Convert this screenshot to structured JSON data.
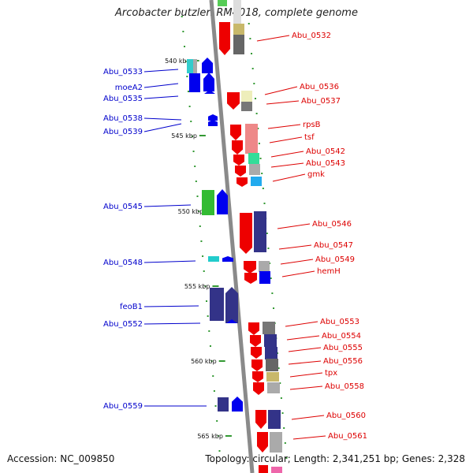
{
  "title": "Arcobacter butzleri RM4018, complete genome",
  "accession": "Accession: NC_009850",
  "footer_info": "Topology: circular; Length: 2,341,251 bp; Genes: 2,328",
  "colors": {
    "plus_strand_label": "#0000cc",
    "minus_strand_label": "#dd0000",
    "backbone": "#888888",
    "tick": "#339933"
  },
  "scale_ticks": [
    "540 kbp",
    "545 kbp",
    "550 kbp",
    "555 kbp",
    "560 kbp",
    "565 kbp"
  ],
  "gene_labels_left": [
    "Abu_0533",
    "moeA2",
    "Abu_0535",
    "Abu_0538",
    "Abu_0539",
    "Abu_0545",
    "Abu_0548",
    "feoB1",
    "Abu_0552",
    "Abu_0559"
  ],
  "gene_labels_right": [
    "Abu_0532",
    "Abu_0536",
    "Abu_0537",
    "rpsB",
    "tsf",
    "Abu_0542",
    "Abu_0543",
    "gmk",
    "Abu_0546",
    "Abu_0547",
    "Abu_0549",
    "hemH",
    "Abu_0553",
    "Abu_0554",
    "Abu_0555",
    "Abu_0556",
    "tpx",
    "Abu_0558",
    "Abu_0560",
    "Abu_0561"
  ]
}
